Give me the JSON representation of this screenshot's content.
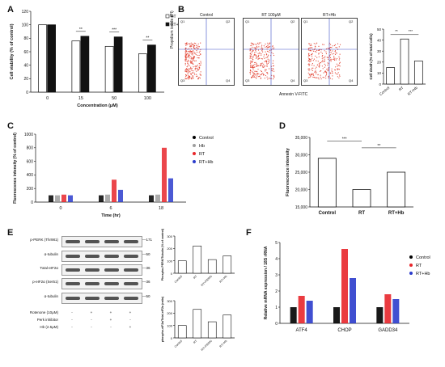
{
  "panels": {
    "A": "A",
    "B": "B",
    "C": "C",
    "D": "D",
    "E": "E",
    "F": "F"
  },
  "colors": {
    "ctrl": "#000000",
    "hb": "#9e9e9e",
    "rt": "#e8262b",
    "rthb": "#2b3ccc",
    "open": "#ffffff",
    "filled": "#111111"
  },
  "chart_data": [
    {
      "id": "A",
      "type": "bar",
      "categories": [
        "0",
        "15",
        "50",
        "100"
      ],
      "series": [
        {
          "name": "RT",
          "values": [
            100,
            76,
            68,
            57
          ]
        },
        {
          "name": "RT+Hb",
          "values": [
            100,
            83,
            82,
            70
          ]
        }
      ],
      "ylim": [
        0,
        120
      ],
      "yticks": [
        0,
        20,
        40,
        60,
        80,
        100,
        120
      ],
      "xlabel": "Concentration (μM)",
      "ylabel": "Cell viability (% of control)",
      "sig": [
        "",
        "**",
        "***",
        "**"
      ]
    },
    {
      "id": "B",
      "type": "bar",
      "categories": [
        "Control",
        "RT",
        "RT+Hb"
      ],
      "values": [
        15,
        41,
        21
      ],
      "ylim": [
        0,
        50
      ],
      "yticks": [
        0,
        10,
        20,
        30,
        40,
        50
      ],
      "ylabel": "Cell death (% of total cells)",
      "sig": [
        "**",
        "***"
      ]
    },
    {
      "id": "C",
      "type": "bar",
      "categories": [
        "0",
        "6",
        "18"
      ],
      "series": [
        {
          "name": "Control",
          "values": [
            100,
            100,
            100
          ]
        },
        {
          "name": "Hb",
          "values": [
            100,
            110,
            110
          ]
        },
        {
          "name": "RT",
          "values": [
            110,
            330,
            800
          ]
        },
        {
          "name": "RT+Hb",
          "values": [
            100,
            180,
            350
          ]
        }
      ],
      "ylim": [
        0,
        1000
      ],
      "yticks": [
        0,
        200,
        400,
        600,
        800,
        1000
      ],
      "xlabel": "Time (hr)",
      "ylabel": "Fluorescence intensity (% of control)"
    },
    {
      "id": "D",
      "type": "bar",
      "categories": [
        "Control",
        "RT",
        "RT+Hb"
      ],
      "values": [
        29000,
        20000,
        25000
      ],
      "ylim": [
        15000,
        35000
      ],
      "yticks": [
        15000,
        20000,
        25000,
        30000,
        35000
      ],
      "ytick_labels": [
        "15,000",
        "20,000",
        "25,000",
        "30,000",
        "35,000"
      ],
      "ylabel": "Fluorescence intensity",
      "sig": [
        "***",
        "**"
      ]
    },
    {
      "id": "E1",
      "type": "bar",
      "categories": [
        "Control",
        "RT",
        "RT+PERKi",
        "RT+Hb"
      ],
      "values": [
        100,
        220,
        110,
        140
      ],
      "ylim": [
        0,
        300
      ],
      "yticks": [
        0,
        100,
        200,
        300
      ],
      "ylabel": "Phospho-PERK/Tubulin (% of control)"
    },
    {
      "id": "E2",
      "type": "bar",
      "categories": [
        "Control",
        "RT",
        "RT+PERKi",
        "RT+Hb"
      ],
      "values": [
        100,
        230,
        130,
        185
      ],
      "ylim": [
        0,
        300
      ],
      "yticks": [
        0,
        100,
        200,
        300
      ],
      "ylabel": "phospho-eIF2a/Total-eIF2a (ratio)"
    },
    {
      "id": "F",
      "type": "bar",
      "categories": [
        "ATF4",
        "CHOP",
        "GADD34"
      ],
      "series": [
        {
          "name": "Control",
          "values": [
            1.0,
            1.0,
            1.0
          ]
        },
        {
          "name": "RT",
          "values": [
            1.7,
            4.6,
            1.8
          ]
        },
        {
          "name": "RT+Hb",
          "values": [
            1.4,
            2.8,
            1.5
          ]
        }
      ],
      "ylim": [
        0,
        5
      ],
      "yticks": [
        0,
        1,
        2,
        3,
        4,
        5
      ],
      "ylabel": "Relative mRNA expression / 18S rRNA"
    }
  ],
  "flow": {
    "titles": [
      "Control",
      "RT 100μM",
      "RT+Hb"
    ],
    "quadrants": [
      "Q1",
      "Q2",
      "Q3",
      "Q4"
    ],
    "xlabel": "Annexin V-FITC",
    "ylabel": "Propidium iodide (PI)"
  },
  "blot": {
    "labels": [
      "p-PERK (Thr981)",
      "α-tubulin",
      "Total-eIF2α",
      "p-eIF2α (Ser51)",
      "α-tubulin"
    ],
    "markers": [
      "171",
      "50",
      "36",
      "36",
      "50"
    ],
    "treatments": [
      "Rotenone (10μM)",
      "Perk inhibitor",
      "Hb (2.5μM)"
    ],
    "signs": [
      [
        "-",
        "+",
        "+",
        "+"
      ],
      [
        "-",
        "-",
        "+",
        "-"
      ],
      [
        "-",
        "-",
        "-",
        "+"
      ]
    ]
  }
}
